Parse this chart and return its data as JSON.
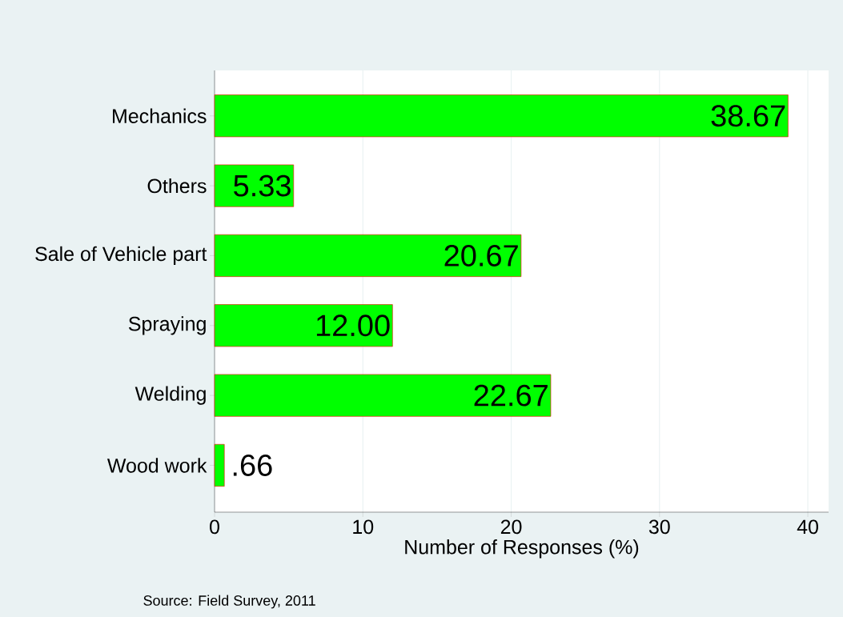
{
  "chart_data": {
    "type": "bar",
    "orientation": "horizontal",
    "categories": [
      "Mechanics",
      "Others",
      "Sale of Vehicle part",
      "Spraying",
      "Welding",
      "Wood work"
    ],
    "values": [
      38.67,
      5.33,
      20.67,
      12.0,
      22.67,
      0.66
    ],
    "value_labels": [
      "38.67",
      "5.33",
      "20.67",
      "12.00",
      "22.67",
      ".66"
    ],
    "color": "#00ff00",
    "xlim": [
      0,
      41.4
    ],
    "xticks": [
      0,
      10,
      20,
      30,
      40
    ],
    "xlabel": "Number of Responses (%)",
    "grid": "x",
    "annotations": [
      "Source: Field Survey, 2011"
    ]
  }
}
